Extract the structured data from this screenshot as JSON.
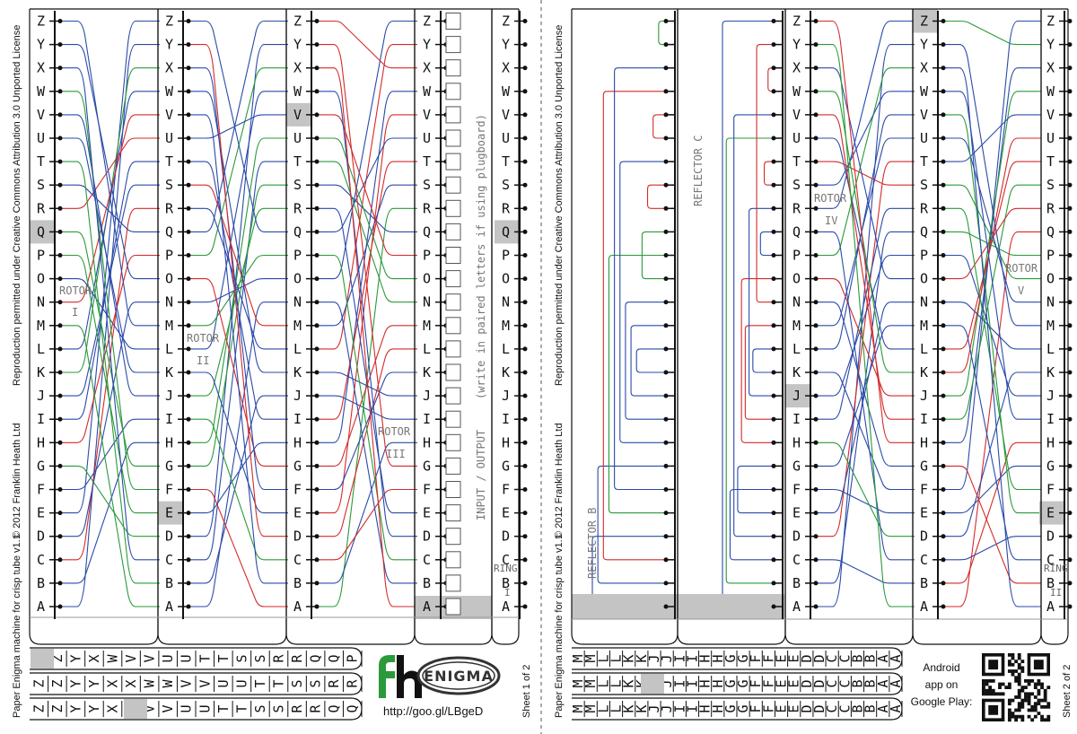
{
  "letters": [
    "A",
    "B",
    "C",
    "D",
    "E",
    "F",
    "G",
    "H",
    "I",
    "J",
    "K",
    "L",
    "M",
    "N",
    "O",
    "P",
    "Q",
    "R",
    "S",
    "T",
    "U",
    "V",
    "W",
    "X",
    "Y",
    "Z"
  ],
  "sheet1": {
    "highlights": {
      "col_left": "Q",
      "col_rotor1_right": "E",
      "col_rotor2_right": "V",
      "col_io_right": "Q"
    },
    "rotor_labels": [
      {
        "text": "ROTOR",
        "num": "I"
      },
      {
        "text": "ROTOR",
        "num": "II"
      },
      {
        "text": "ROTOR",
        "num": "III"
      }
    ],
    "ring_label": "RING",
    "ring_num": "I",
    "io_note": "INPUT / OUTPUT",
    "io_note2": "(write in paired letters if using plugboard)",
    "side_text": "Reproduction permitted under Creative Commons Attribution 3.0 Unported License",
    "credit": "© 2012 Franklin Heath Ltd",
    "machine_title": "Paper Enigma machine for crisp tube v1.1",
    "sheet_label": "Sheet 1 of 2",
    "logo_fh": "fh",
    "logo_enigma": "ENIGMA",
    "url": "http://goo.gl/LBgeD",
    "strip_rows": [
      [
        "Z",
        "Z",
        "Y",
        "X",
        "W",
        "V",
        "V",
        "U",
        "U",
        "T",
        "T",
        "S",
        "S",
        "R",
        "R",
        "Q",
        "Q",
        "P"
      ],
      [
        "Z",
        "Z",
        "Y",
        "Y",
        "X",
        "X",
        "W",
        "W",
        "V",
        "V",
        "U",
        "U",
        "T",
        "T",
        "S",
        "S",
        "R",
        "R"
      ],
      [
        "Z",
        "Z",
        "Y",
        "Y",
        "X",
        "W",
        "V",
        "V",
        "U",
        "U",
        "T",
        "T",
        "S",
        "S",
        "R",
        "R",
        "Q",
        "Q"
      ]
    ],
    "strip_tail": [
      [
        "RING",
        "RING",
        "RING"
      ],
      [
        "P",
        "O",
        "N",
        "N"
      ]
    ],
    "strip_roman": [
      "I",
      "IV",
      "III"
    ]
  },
  "sheet2": {
    "highlights": {
      "col_reflector_row": "A",
      "col_rotor4_left": "J",
      "col_rotor5_left": "Z",
      "col_right": "E"
    },
    "reflector_b": "REFLECTOR B",
    "reflector_c": "REFLECTOR C",
    "rotor_labels": [
      {
        "text": "ROTOR",
        "num": "IV"
      },
      {
        "text": "ROTOR",
        "num": "V"
      }
    ],
    "ring_label": "RING",
    "ring_num": "II",
    "side_text": "Reproduction permitted under Creative Commons Attribution 3.0 Unported License",
    "credit": "© 2012 Franklin Heath Ltd",
    "machine_title": "Paper Enigma machine for crisp tube v1.1",
    "sheet_label": "Sheet 2 of 2",
    "android_text": [
      "Android",
      "app on",
      "Google Play:"
    ],
    "strip_rows": [
      [
        "M",
        "M",
        "L",
        "L",
        "K",
        "K",
        "J",
        "J",
        "I",
        "I",
        "H",
        "H",
        "G",
        "G",
        "F",
        "F",
        "E",
        "E",
        "D",
        "D",
        "C",
        "C",
        "B",
        "B",
        "A",
        "A"
      ],
      [
        "M",
        "M",
        "L",
        "L",
        "K",
        "K",
        "J",
        "J",
        "I",
        "I",
        "H",
        "H",
        "G",
        "G",
        "F",
        "F",
        "E",
        "E",
        "D",
        "D",
        "C",
        "C",
        "B",
        "B",
        "A",
        "A"
      ],
      [
        "M",
        "M",
        "L",
        "L",
        "K",
        "K",
        "J",
        "J",
        "I",
        "I",
        "H",
        "H",
        "G",
        "G",
        "F",
        "F",
        "E",
        "E",
        "D",
        "D",
        "C",
        "C",
        "B",
        "B",
        "A",
        "A"
      ]
    ]
  },
  "colors": {
    "red": "#d42a2a",
    "green": "#2a9a3a",
    "blue": "#2a4aa8",
    "highlight": "#c4c4c4",
    "line": "#111111"
  }
}
